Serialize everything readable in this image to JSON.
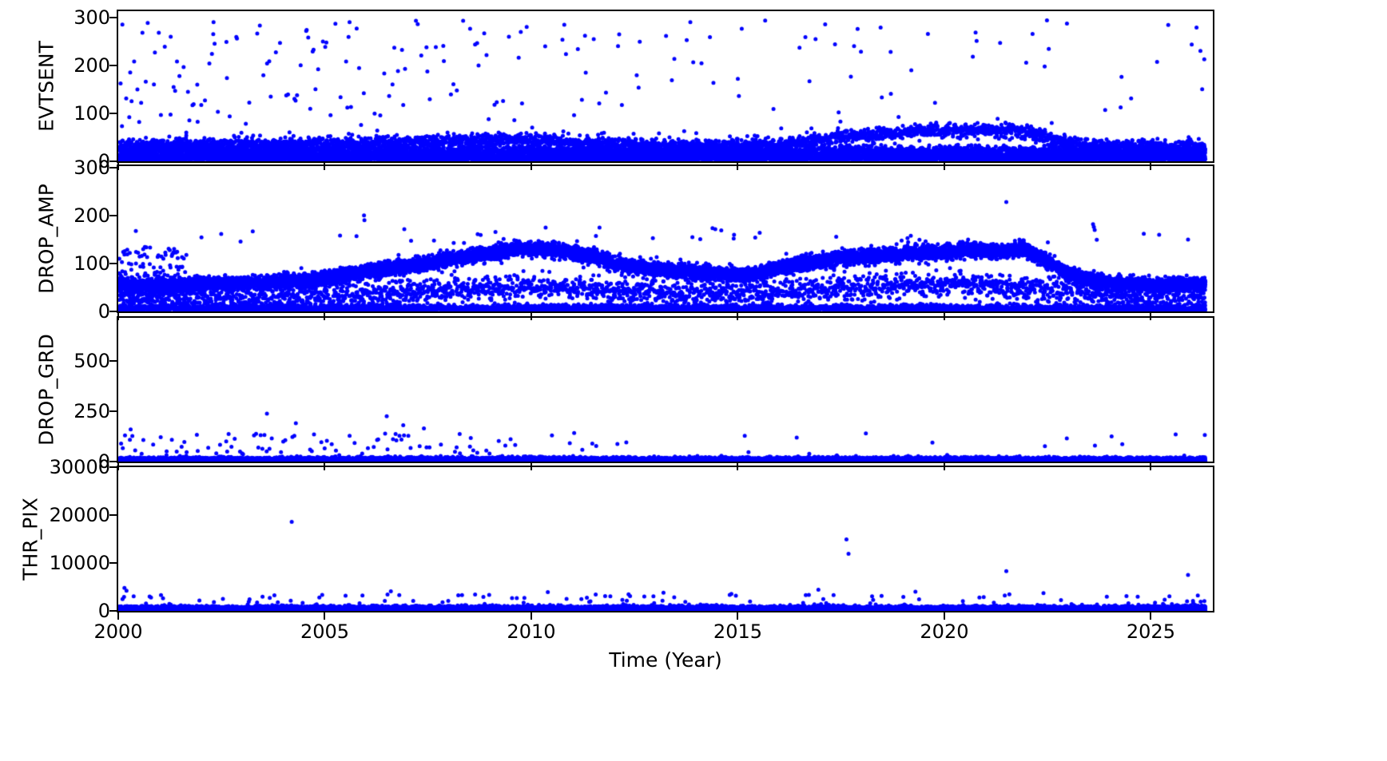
{
  "figure": {
    "background": "#ffffff"
  },
  "chart_data": {
    "type": "scatter",
    "title": "",
    "xlabel": "Time (Year)",
    "x_range": [
      2000,
      2026.5
    ],
    "x_data_range": [
      2000.02,
      2026.3
    ],
    "x_ticks": [
      2000,
      2005,
      2010,
      2015,
      2020,
      2025
    ],
    "marker_color": "#0000ff",
    "marker_radius": 2.5,
    "seed": 20240605,
    "legend": null,
    "grid": false,
    "panels": [
      {
        "ylabel": "EVTSENT",
        "ylim": [
          0,
          313
        ],
        "yticks": [
          0,
          100,
          200,
          300
        ],
        "layers": [
          {
            "kind": "band",
            "anchors": [
              [
                2000,
                7
              ],
              [
                2026.3,
                7
              ]
            ],
            "spread": 4,
            "per_year": 190,
            "clip_min": 0.5
          },
          {
            "kind": "band",
            "anchors": [
              [
                2000,
                20
              ],
              [
                2026.3,
                20
              ]
            ],
            "spread": 6,
            "per_year": 160,
            "clip_min": 1
          },
          {
            "kind": "band",
            "anchors": [
              [
                2000,
                33
              ],
              [
                2003,
                34
              ],
              [
                2006,
                38
              ],
              [
                2008,
                43
              ],
              [
                2010,
                44
              ],
              [
                2011,
                40
              ],
              [
                2012,
                36
              ],
              [
                2013,
                33
              ],
              [
                2014,
                32
              ],
              [
                2015,
                34
              ],
              [
                2016,
                36
              ],
              [
                2017,
                44
              ],
              [
                2018,
                55
              ],
              [
                2019,
                61
              ],
              [
                2020,
                64
              ],
              [
                2021,
                65
              ],
              [
                2021.8,
                62
              ],
              [
                2022.5,
                52
              ],
              [
                2023,
                40
              ],
              [
                2023.5,
                33
              ],
              [
                2024,
                30
              ],
              [
                2026.3,
                30
              ]
            ],
            "spread": 7,
            "per_year": 120,
            "clip_min": 2
          },
          {
            "kind": "uniform",
            "ymin": 55,
            "ymax": 295,
            "per_year": [
              [
                2000,
                16
              ],
              [
                2002,
                12
              ],
              [
                2004,
                10
              ],
              [
                2006,
                11
              ],
              [
                2008,
                10
              ],
              [
                2010,
                9
              ],
              [
                2011,
                7
              ],
              [
                2012,
                5
              ],
              [
                2013,
                4
              ],
              [
                2015,
                4
              ],
              [
                2017,
                6
              ],
              [
                2018,
                6
              ],
              [
                2019,
                4
              ],
              [
                2020,
                4
              ],
              [
                2021,
                6
              ],
              [
                2022,
                4
              ],
              [
                2023,
                3
              ],
              [
                2024,
                3
              ],
              [
                2025,
                4
              ],
              [
                2026.3,
                5
              ]
            ]
          },
          {
            "kind": "points",
            "pts": [
              [
                2000.1,
                285
              ],
              [
                2002.3,
                265
              ],
              [
                2004.55,
                272
              ],
              [
                2004.6,
                258
              ],
              [
                2005.6,
                290
              ],
              [
                2008.35,
                293
              ],
              [
                2013.85,
                290
              ],
              [
                2017.9,
                276
              ],
              [
                2021.35,
                247
              ],
              [
                2026.2,
                230
              ],
              [
                2018.7,
                228
              ],
              [
                2019.2,
                190
              ],
              [
                2011.3,
                262
              ],
              [
                2012.1,
                240
              ]
            ]
          }
        ]
      },
      {
        "ylabel": "DROP_AMP",
        "ylim": [
          0,
          303
        ],
        "yticks": [
          0,
          100,
          200,
          300
        ],
        "layers": [
          {
            "kind": "band",
            "anchors": [
              [
                2000,
                55
              ],
              [
                2001,
                52
              ],
              [
                2002,
                57
              ],
              [
                2003,
                58
              ],
              [
                2004,
                62
              ],
              [
                2005,
                68
              ],
              [
                2006,
                82
              ],
              [
                2007,
                95
              ],
              [
                2008,
                108
              ],
              [
                2009,
                122
              ],
              [
                2009.7,
                133
              ],
              [
                2010,
                132
              ],
              [
                2010.5,
                128
              ],
              [
                2011,
                122
              ],
              [
                2011.5,
                115
              ],
              [
                2012,
                100
              ],
              [
                2012.5,
                93
              ],
              [
                2013,
                88
              ],
              [
                2014,
                82
              ],
              [
                2015,
                77
              ],
              [
                2015.7,
                82
              ],
              [
                2016,
                92
              ],
              [
                2016.6,
                100
              ],
              [
                2017,
                104
              ],
              [
                2017.5,
                112
              ],
              [
                2018,
                114
              ],
              [
                2019,
                119
              ],
              [
                2019.5,
                123
              ],
              [
                2020,
                124
              ],
              [
                2020.7,
                128
              ],
              [
                2021.3,
                124
              ],
              [
                2021.9,
                129
              ],
              [
                2022.3,
                115
              ],
              [
                2022.6,
                100
              ],
              [
                2023,
                78
              ],
              [
                2023.5,
                67
              ],
              [
                2024,
                60
              ],
              [
                2024.5,
                57
              ],
              [
                2025,
                54
              ],
              [
                2026.3,
                57
              ]
            ],
            "spread": 7,
            "per_year": 430,
            "clip_min": 2
          },
          {
            "kind": "band",
            "anchors": [
              [
                2000,
                6
              ],
              [
                2026.3,
                6
              ]
            ],
            "spread": 4,
            "per_year": 170,
            "clip_min": 0.3
          },
          {
            "kind": "band",
            "anchors": [
              [
                2000,
                30
              ],
              [
                2004,
                28
              ],
              [
                2006,
                36
              ],
              [
                2008,
                45
              ],
              [
                2010,
                52
              ],
              [
                2012,
                45
              ],
              [
                2014,
                38
              ],
              [
                2016,
                40
              ],
              [
                2018,
                50
              ],
              [
                2020,
                57
              ],
              [
                2022,
                50
              ],
              [
                2024,
                35
              ],
              [
                2026.3,
                33
              ]
            ],
            "spread": 13,
            "per_year": 100,
            "clip_min": 1
          },
          {
            "kind": "uniform",
            "x_range": [
              2000,
              2001.6
            ],
            "ymin": 15,
            "ymax": 135,
            "per_year": 90
          },
          {
            "kind": "uniform",
            "ymin": 140,
            "ymax": 175,
            "per_year": [
              [
                2000,
                1.5
              ],
              [
                2005,
                2
              ],
              [
                2008,
                3
              ],
              [
                2010,
                3.5
              ],
              [
                2011,
                3
              ],
              [
                2012,
                1.5
              ],
              [
                2015,
                1
              ],
              [
                2018,
                1.5
              ],
              [
                2020,
                2
              ],
              [
                2021,
                2.5
              ],
              [
                2022,
                2
              ],
              [
                2023,
                1
              ],
              [
                2026.3,
                1
              ]
            ]
          },
          {
            "kind": "points",
            "pts": [
              [
                2005.95,
                200
              ],
              [
                2005.96,
                190
              ],
              [
                2021.5,
                228
              ],
              [
                2023.6,
                182
              ],
              [
                2023.62,
                176
              ],
              [
                2023.64,
                170
              ],
              [
                2025.2,
                160
              ],
              [
                2025.9,
                150
              ],
              [
                2013.9,
                155
              ],
              [
                2014.9,
                152
              ]
            ]
          }
        ]
      },
      {
        "ylabel": "DROP_GRD",
        "ylim": [
          0,
          714
        ],
        "yticks": [
          0,
          250,
          500
        ],
        "layers": [
          {
            "kind": "band",
            "anchors": [
              [
                2000,
                8
              ],
              [
                2026.3,
                8
              ]
            ],
            "spread": 6,
            "per_year": 440,
            "clip_min": 0.3
          },
          {
            "kind": "uniform",
            "ymin": 25,
            "ymax": 150,
            "per_year": [
              [
                2000,
                9
              ],
              [
                2002,
                8
              ],
              [
                2003,
                10
              ],
              [
                2004,
                9
              ],
              [
                2005,
                10
              ],
              [
                2006,
                12
              ],
              [
                2007,
                10
              ],
              [
                2008,
                6
              ],
              [
                2009,
                4
              ],
              [
                2010,
                3
              ],
              [
                2011,
                2
              ],
              [
                2012,
                1.5
              ],
              [
                2013,
                1
              ],
              [
                2015,
                0.8
              ],
              [
                2017,
                0.8
              ],
              [
                2019,
                0.6
              ],
              [
                2021,
                0.8
              ],
              [
                2023,
                0.6
              ],
              [
                2025,
                1
              ],
              [
                2026.3,
                1.2
              ]
            ]
          },
          {
            "kind": "points",
            "pts": [
              [
                2003.6,
                238
              ],
              [
                2006.5,
                225
              ],
              [
                2004.3,
                190
              ],
              [
                2006.9,
                180
              ],
              [
                2007.4,
                165
              ],
              [
                2000.3,
                160
              ],
              [
                2018.1,
                140
              ],
              [
                2025.6,
                135
              ],
              [
                2010.5,
                130
              ],
              [
                2012.3,
                95
              ]
            ]
          }
        ]
      },
      {
        "ylabel": "THR_PIX",
        "ylim": [
          0,
          30000
        ],
        "yticks": [
          0,
          10000,
          20000,
          30000
        ],
        "layers": [
          {
            "kind": "band",
            "anchors": [
              [
                2000,
                420
              ],
              [
                2026.3,
                420
              ]
            ],
            "spread": 280,
            "per_year": 440,
            "clip_min": 30
          },
          {
            "kind": "uniform",
            "ymin": 1200,
            "ymax": 3600,
            "per_year": [
              [
                2000,
                7
              ],
              [
                2003,
                5
              ],
              [
                2005,
                5
              ],
              [
                2007,
                5
              ],
              [
                2010,
                5
              ],
              [
                2012,
                4
              ],
              [
                2015,
                3
              ],
              [
                2018,
                3
              ],
              [
                2020,
                3
              ],
              [
                2022,
                2.5
              ],
              [
                2024,
                2.5
              ],
              [
                2026.3,
                3
              ]
            ]
          },
          {
            "kind": "points",
            "pts": [
              [
                2000.15,
                4800
              ],
              [
                2000.2,
                4200
              ],
              [
                2004.2,
                18600
              ],
              [
                2017.63,
                14900
              ],
              [
                2017.68,
                11900
              ],
              [
                2021.5,
                8300
              ],
              [
                2025.9,
                7500
              ],
              [
                2016.95,
                4400
              ],
              [
                2019.3,
                4000
              ],
              [
                2006.6,
                4100
              ],
              [
                2010.4,
                3900
              ],
              [
                2013.2,
                3800
              ],
              [
                2022.4,
                3700
              ]
            ]
          }
        ]
      }
    ]
  }
}
